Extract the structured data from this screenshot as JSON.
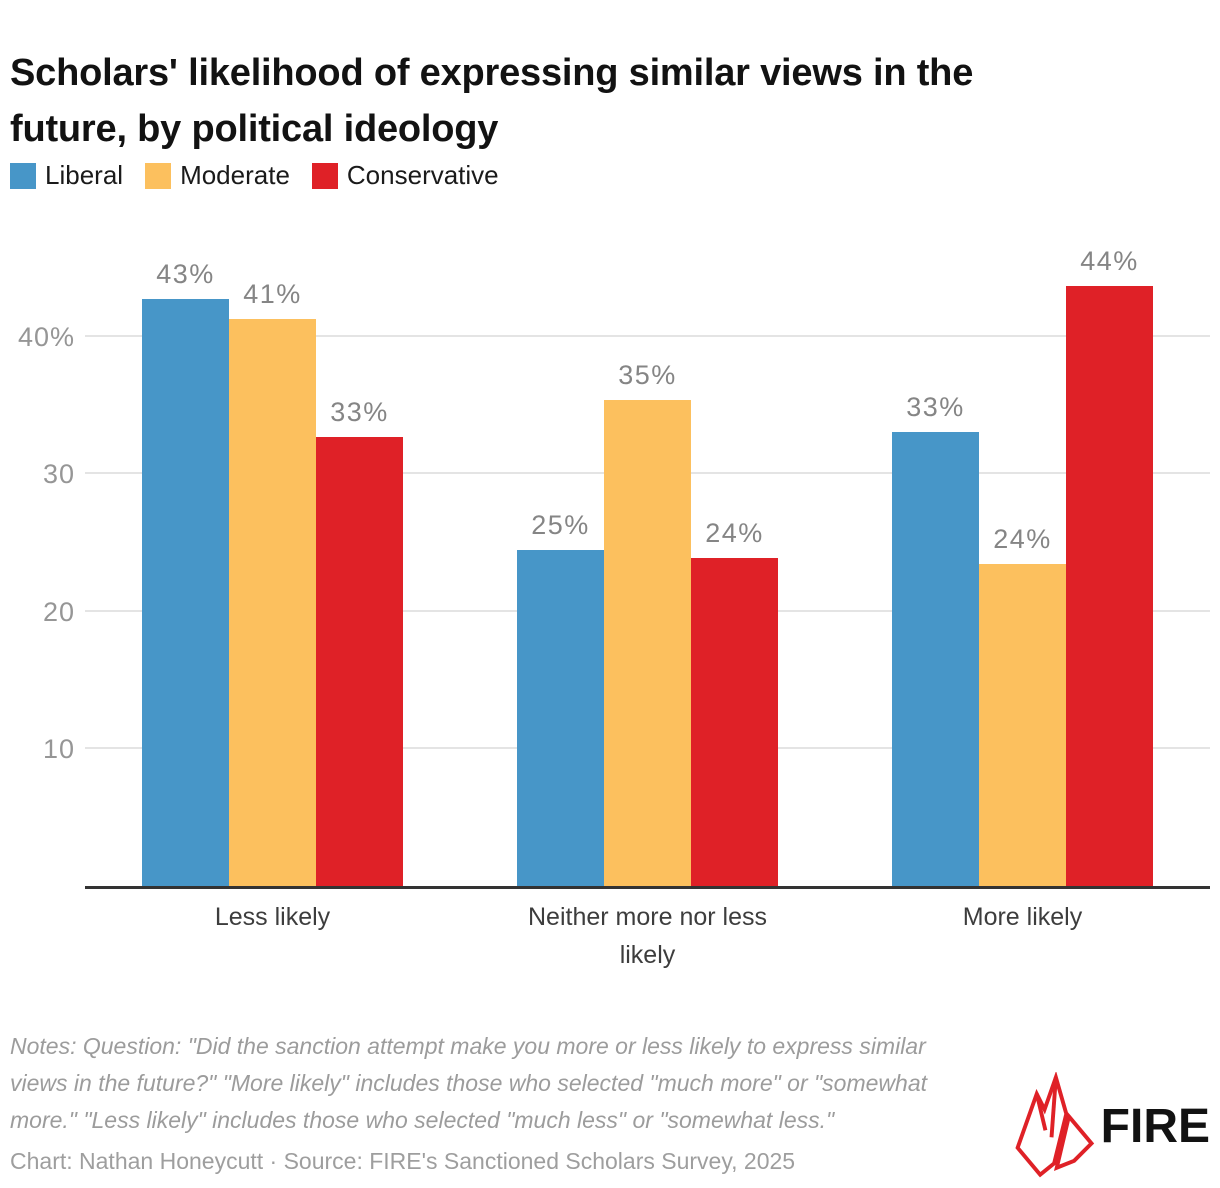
{
  "title": "Scholars' likelihood of expressing similar views in the future, by political ideology",
  "legend": {
    "items": [
      {
        "label": "Liberal",
        "color": "#4796C8"
      },
      {
        "label": "Moderate",
        "color": "#FCC05E"
      },
      {
        "label": "Conservative",
        "color": "#DF2127"
      }
    ]
  },
  "chart_data": {
    "type": "bar",
    "title": "Scholars' likelihood of expressing similar views in the future, by political ideology",
    "categories": [
      "Less likely",
      "Neither more nor less likely",
      "More likely"
    ],
    "series": [
      {
        "name": "Liberal",
        "color": "#4796C8",
        "values": [
          43,
          25,
          33
        ],
        "labels": [
          "43%",
          "25%",
          "33%"
        ],
        "render_values": [
          42.8,
          24.5,
          33.1
        ]
      },
      {
        "name": "Moderate",
        "color": "#FCC05E",
        "values": [
          41,
          35,
          24
        ],
        "labels": [
          "41%",
          "35%",
          "24%"
        ],
        "render_values": [
          41.3,
          35.4,
          23.5
        ]
      },
      {
        "name": "Conservative",
        "color": "#DF2127",
        "values": [
          33,
          24,
          44
        ],
        "labels": [
          "33%",
          "24%",
          "44%"
        ],
        "render_values": [
          32.7,
          23.9,
          43.7
        ]
      }
    ],
    "xlabel": "",
    "ylabel": "",
    "ylim": [
      0,
      47.8
    ],
    "yticks": [
      {
        "value": 10,
        "label": "10"
      },
      {
        "value": 20,
        "label": "20"
      },
      {
        "value": 30,
        "label": "30"
      },
      {
        "value": 40,
        "label": "40%"
      }
    ],
    "grid": "horizontal",
    "legend_position": "top-left",
    "gridline_color": "#e4e4e4",
    "axis_line_color": "#333333",
    "data_label_color": "#858585"
  },
  "notes": {
    "lines": [
      "Notes: Question: \"Did the sanction attempt make you more or less likely to express similar",
      "views in the future?\" \"More likely\" includes those who selected \"much more\" or \"somewhat",
      "more.\" \"Less likely\" includes those who selected \"much less\" or \"somewhat less.\""
    ]
  },
  "credit": "Chart: Nathan Honeycutt · Source: FIRE's Sanctioned Scholars Survey, 2025",
  "logo": {
    "text": "FIRE",
    "flame_color": "#DF2127"
  }
}
